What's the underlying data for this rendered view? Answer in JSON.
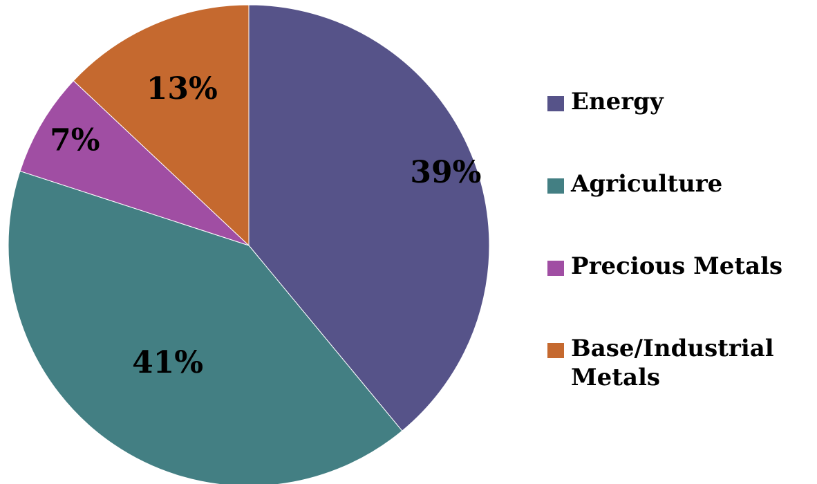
{
  "chart_data": {
    "type": "pie",
    "title": "",
    "slices": [
      {
        "name": "Energy",
        "value": 39,
        "label": "39%",
        "color": "#565389"
      },
      {
        "name": "Agriculture",
        "value": 41,
        "label": "41%",
        "color": "#437f83"
      },
      {
        "name": "Precious Metals",
        "value": 7,
        "label": "7%",
        "color": "#a04ea3"
      },
      {
        "name": "Base/Industrial Metals",
        "value": 13,
        "label": "13%",
        "color": "#c5692f"
      }
    ],
    "legend": {
      "position": "right",
      "items": [
        "Energy",
        "Agriculture",
        "Precious Metals",
        "Base/Industrial Metals"
      ]
    }
  }
}
